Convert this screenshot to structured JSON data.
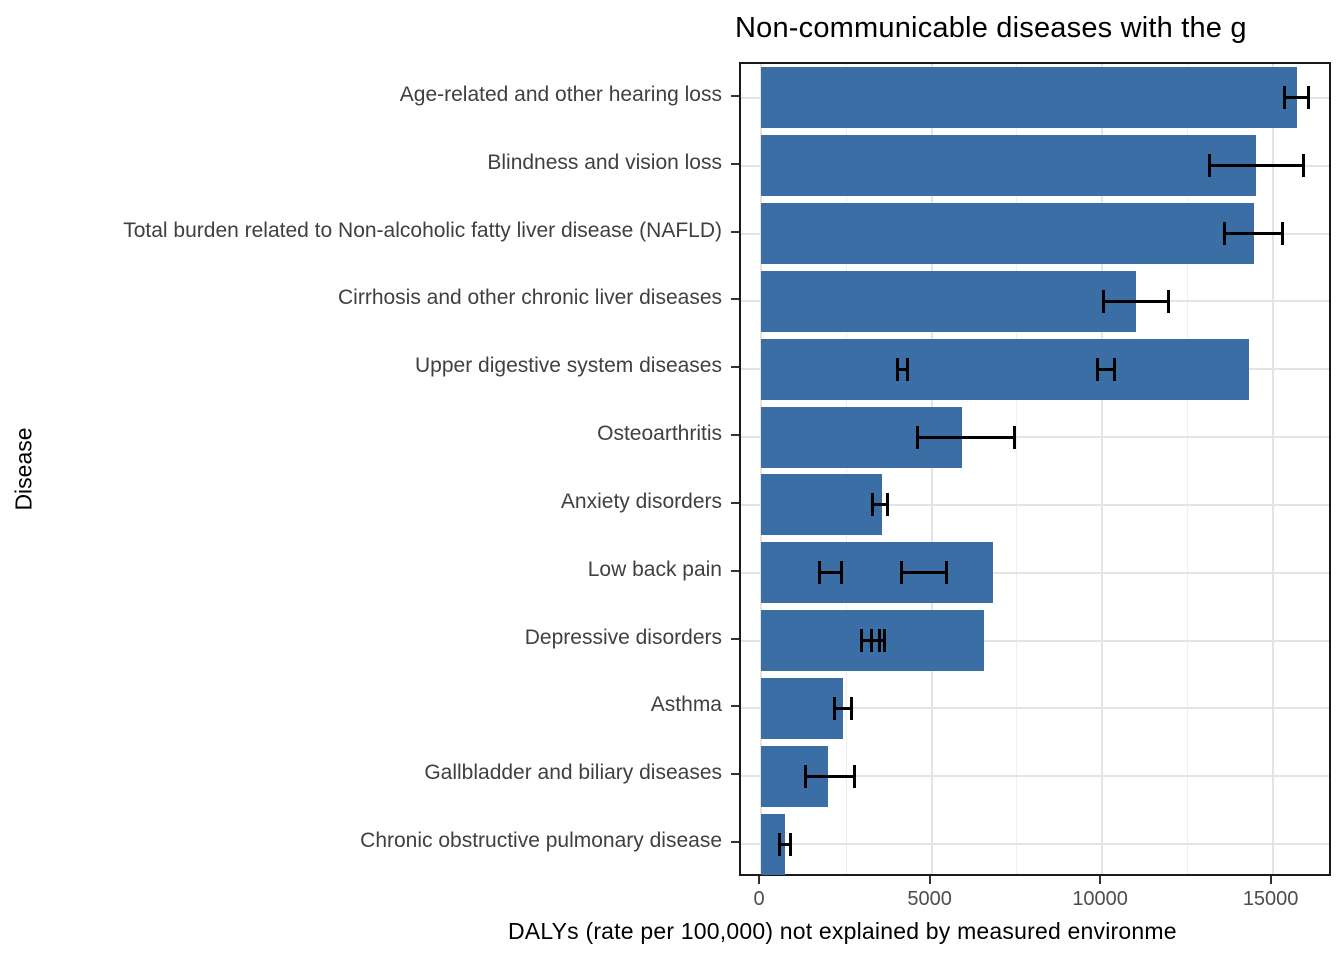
{
  "title": "Non-communicable diseases with the g",
  "axes": {
    "x_label": "DALYs (rate per 100,000) not explained by measured environme",
    "y_label": "Disease"
  },
  "colors": {
    "bar_fill": "#3A6EA5",
    "panel_border": "#1a1a1a",
    "major_grid": "#e4e4e4",
    "minor_grid": "#efefef",
    "errorbar": "#000000",
    "tick_text": "#4d4d4d",
    "category_text": "#404040"
  },
  "chart_data": {
    "type": "bar",
    "orientation": "horizontal",
    "title": "Non-communicable diseases with the g",
    "xlabel": "DALYs (rate per 100,000) not explained by measured environme",
    "ylabel": "Disease",
    "grid": true,
    "legend_position": "none",
    "xlim": [
      -590,
      16770
    ],
    "x_ticks": [
      0,
      5000,
      10000,
      15000
    ],
    "x_minor_gridlines": [
      2500,
      7500,
      12500
    ],
    "bar_width_fraction": 0.9,
    "categories": [
      "Age-related and other hearing loss",
      "Blindness and vision loss",
      "Total burden related to Non-alcoholic fatty liver disease (NAFLD)",
      "Cirrhosis and other chronic liver diseases",
      "Upper digestive system diseases",
      "Osteoarthritis",
      "Anxiety disorders",
      "Low back pain",
      "Depressive disorders",
      "Asthma",
      "Gallbladder and biliary diseases",
      "Chronic obstructive pulmonary disease"
    ],
    "values": [
      15700,
      14500,
      14450,
      11000,
      14300,
      5900,
      3550,
      6800,
      6550,
      2400,
      1950,
      700
    ],
    "error_bars": [
      [
        [
          15350,
          16050
        ]
      ],
      [
        [
          13150,
          15900
        ]
      ],
      [
        [
          13600,
          15300
        ]
      ],
      [
        [
          10050,
          11950
        ]
      ],
      [
        [
          4000,
          4300
        ],
        [
          9850,
          10350
        ]
      ],
      [
        [
          4580,
          7420
        ]
      ],
      [
        [
          3280,
          3720
        ]
      ],
      [
        [
          1700,
          2350
        ],
        [
          4130,
          5430
        ]
      ],
      [
        [
          2930,
          3480
        ],
        [
          3250,
          3610
        ]
      ],
      [
        [
          2140,
          2640
        ]
      ],
      [
        [
          1290,
          2730
        ]
      ],
      [
        [
          530,
          850
        ]
      ]
    ]
  }
}
